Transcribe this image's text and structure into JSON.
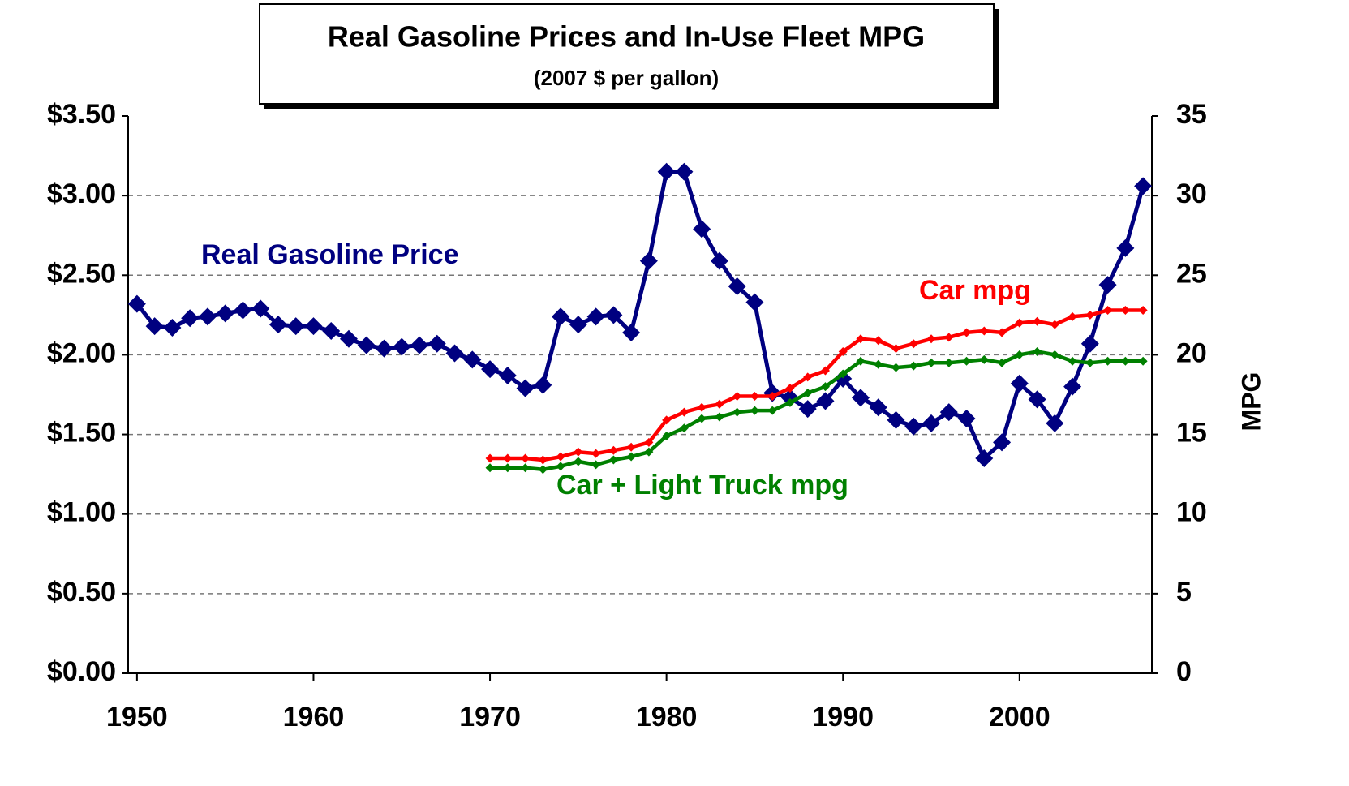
{
  "chart_data": {
    "type": "line",
    "title": "Real Gasoline Prices and In-Use Fleet MPG",
    "subtitle": "(2007 $ per gallon)",
    "y2_label": "MPG",
    "xlim": [
      1949.5,
      2007.5
    ],
    "xticks": [
      1950,
      1960,
      1970,
      1980,
      1990,
      2000
    ],
    "ylim": [
      0,
      3.5
    ],
    "yticks": [
      {
        "value": 0,
        "label": "$0.00"
      },
      {
        "value": 0.5,
        "label": "$0.50"
      },
      {
        "value": 1,
        "label": "$1.00"
      },
      {
        "value": 1.5,
        "label": "$1.50"
      },
      {
        "value": 2,
        "label": "$2.00"
      },
      {
        "value": 2.5,
        "label": "$2.50"
      },
      {
        "value": 3,
        "label": "$3.00"
      },
      {
        "value": 3.5,
        "label": "$3.50"
      }
    ],
    "y2lim": [
      0,
      35
    ],
    "y2ticks": [
      0,
      5,
      10,
      15,
      20,
      25,
      30,
      35
    ],
    "grid": true,
    "series": [
      {
        "name": "Real Gasoline Price",
        "color": "#000080",
        "axis": "y",
        "x": [
          1950,
          1951,
          1952,
          1953,
          1954,
          1955,
          1956,
          1957,
          1958,
          1959,
          1960,
          1961,
          1962,
          1963,
          1964,
          1965,
          1966,
          1967,
          1968,
          1969,
          1970,
          1971,
          1972,
          1973,
          1974,
          1975,
          1976,
          1977,
          1978,
          1979,
          1980,
          1981,
          1982,
          1983,
          1984,
          1985,
          1986,
          1987,
          1988,
          1989,
          1990,
          1991,
          1992,
          1993,
          1994,
          1995,
          1996,
          1997,
          1998,
          1999,
          2000,
          2001,
          2002,
          2003,
          2004,
          2005,
          2006,
          2007
        ],
        "values": [
          2.32,
          2.18,
          2.17,
          2.23,
          2.24,
          2.26,
          2.28,
          2.29,
          2.19,
          2.18,
          2.18,
          2.15,
          2.1,
          2.06,
          2.04,
          2.05,
          2.06,
          2.07,
          2.01,
          1.97,
          1.91,
          1.87,
          1.79,
          1.81,
          2.24,
          2.19,
          2.24,
          2.25,
          2.14,
          2.59,
          3.15,
          3.15,
          2.79,
          2.59,
          2.43,
          2.33,
          1.76,
          1.73,
          1.66,
          1.71,
          1.85,
          1.73,
          1.67,
          1.59,
          1.55,
          1.57,
          1.64,
          1.6,
          1.35,
          1.45,
          1.82,
          1.72,
          1.57,
          1.8,
          2.07,
          2.44,
          2.67,
          3.06
        ]
      },
      {
        "name": "Car mpg",
        "color": "#ff0000",
        "axis": "y2",
        "x": [
          1970,
          1971,
          1972,
          1973,
          1974,
          1975,
          1976,
          1977,
          1978,
          1979,
          1980,
          1981,
          1982,
          1983,
          1984,
          1985,
          1986,
          1987,
          1988,
          1989,
          1990,
          1991,
          1992,
          1993,
          1994,
          1995,
          1996,
          1997,
          1998,
          1999,
          2000,
          2001,
          2002,
          2003,
          2004,
          2005,
          2006,
          2007
        ],
        "values": [
          13.5,
          13.5,
          13.5,
          13.4,
          13.6,
          13.9,
          13.8,
          14.0,
          14.2,
          14.5,
          15.9,
          16.4,
          16.7,
          16.9,
          17.4,
          17.4,
          17.4,
          17.9,
          18.6,
          19.0,
          20.2,
          21.0,
          20.9,
          20.4,
          20.7,
          21.0,
          21.1,
          21.4,
          21.5,
          21.4,
          22.0,
          22.1,
          21.9,
          22.4,
          22.5,
          22.8,
          22.8,
          22.8
        ]
      },
      {
        "name": "Car + Light Truck mpg",
        "color": "#008000",
        "axis": "y2",
        "x": [
          1970,
          1971,
          1972,
          1973,
          1974,
          1975,
          1976,
          1977,
          1978,
          1979,
          1980,
          1981,
          1982,
          1983,
          1984,
          1985,
          1986,
          1987,
          1988,
          1989,
          1990,
          1991,
          1992,
          1993,
          1994,
          1995,
          1996,
          1997,
          1998,
          1999,
          2000,
          2001,
          2002,
          2003,
          2004,
          2005,
          2006,
          2007
        ],
        "values": [
          12.9,
          12.9,
          12.9,
          12.8,
          13.0,
          13.3,
          13.1,
          13.4,
          13.6,
          13.9,
          14.9,
          15.4,
          16.0,
          16.1,
          16.4,
          16.5,
          16.5,
          17.0,
          17.6,
          18.0,
          18.8,
          19.6,
          19.4,
          19.2,
          19.3,
          19.5,
          19.5,
          19.6,
          19.7,
          19.5,
          20.0,
          20.2,
          20.0,
          19.6,
          19.5,
          19.6,
          19.6,
          19.6
        ]
      }
    ]
  }
}
